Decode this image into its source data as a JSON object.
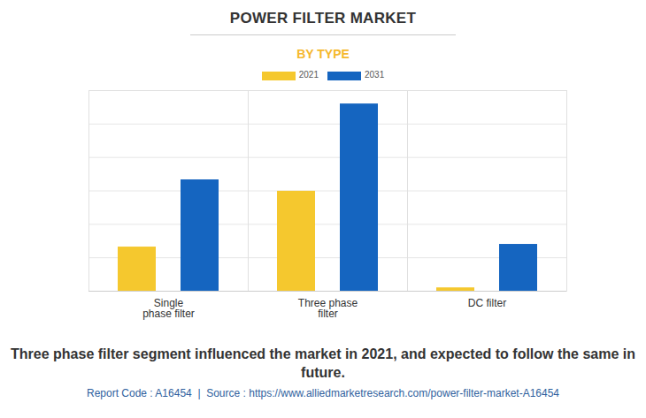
{
  "chart_data": {
    "type": "bar",
    "title": "POWER FILTER MARKET",
    "subtitle": "BY TYPE",
    "categories": [
      "Single phase filter",
      "Three phase filter",
      "DC filter"
    ],
    "series": [
      {
        "name": "2021",
        "color": "#f5c82e",
        "values": [
          1.32,
          2.99,
          0.1
        ]
      },
      {
        "name": "2031",
        "color": "#1565c0",
        "values": [
          3.33,
          5.6,
          1.4
        ]
      }
    ],
    "ylim": [
      0,
      6
    ],
    "yticks": [
      0,
      1,
      2,
      3,
      4,
      5,
      6
    ],
    "grid": true,
    "legend": "top",
    "tick_labels": "x",
    "caption": "Three phase filter segment influenced the market in 2021, and expected to follow the same in future.",
    "source": "Report Code : A16454  |  Source : https://www.alliedmarketresearch.com/power-filter-market-A16454"
  }
}
